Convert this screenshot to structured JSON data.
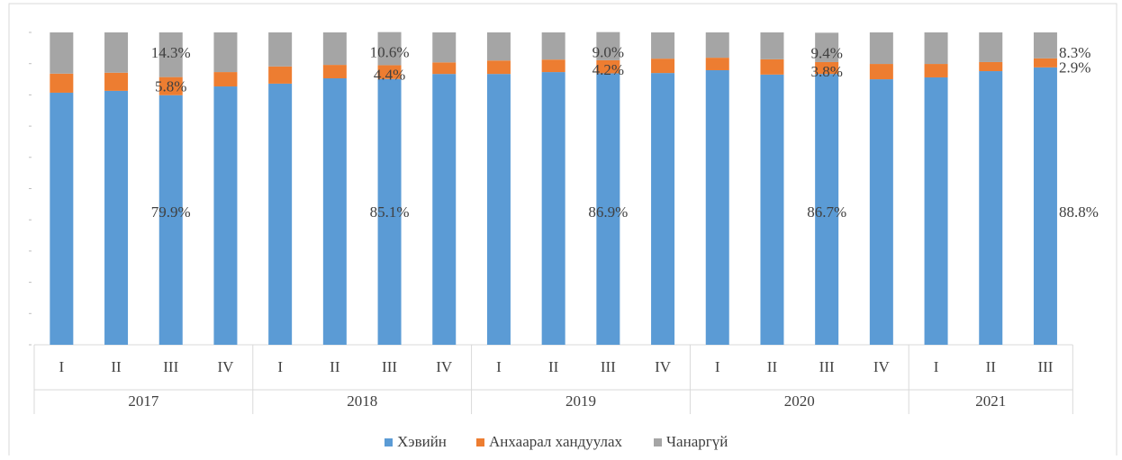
{
  "chart_data": {
    "type": "stacked_bar_100",
    "groups": [
      {
        "label": "2017",
        "categories": [
          "I",
          "II",
          "III",
          "IV"
        ]
      },
      {
        "label": "2018",
        "categories": [
          "I",
          "II",
          "III",
          "IV"
        ]
      },
      {
        "label": "2019",
        "categories": [
          "I",
          "II",
          "III",
          "IV"
        ]
      },
      {
        "label": "2020",
        "categories": [
          "I",
          "II",
          "III",
          "IV"
        ]
      },
      {
        "label": "2021",
        "categories": [
          "I",
          "II",
          "III"
        ]
      }
    ],
    "series": [
      {
        "name": "Хэвийн",
        "color": "#5b9bd5",
        "values": [
          80.7,
          81.3,
          79.9,
          82.7,
          83.6,
          85.3,
          85.1,
          86.7,
          86.7,
          87.3,
          86.9,
          87.0,
          87.9,
          86.5,
          86.7,
          85.0,
          85.6,
          87.6,
          88.8
        ],
        "value_labels": [
          null,
          null,
          "79.9%",
          null,
          null,
          null,
          "85.1%",
          null,
          null,
          null,
          "86.9%",
          null,
          null,
          null,
          "86.7%",
          null,
          null,
          null,
          "88.8%"
        ]
      },
      {
        "name": "Анхаарал хандуулах",
        "color": "#ed7d31",
        "values": [
          6.1,
          5.8,
          5.8,
          4.6,
          5.5,
          4.3,
          4.4,
          3.7,
          4.3,
          4.0,
          4.2,
          4.6,
          4.0,
          4.9,
          3.8,
          4.9,
          4.3,
          2.9,
          2.9
        ],
        "value_labels": [
          null,
          null,
          "5.8%",
          null,
          null,
          null,
          "4.4%",
          null,
          null,
          null,
          "4.2%",
          null,
          null,
          null,
          "3.8%",
          null,
          null,
          null,
          "2.9%"
        ]
      },
      {
        "name": "Чанаргүй",
        "color": "#a5a5a5",
        "values": [
          13.2,
          12.9,
          14.3,
          12.7,
          10.9,
          10.4,
          10.6,
          9.6,
          9.0,
          8.7,
          9.0,
          8.4,
          8.1,
          8.6,
          9.4,
          10.1,
          10.1,
          9.5,
          8.3
        ],
        "value_labels": [
          null,
          null,
          "14.3%",
          null,
          null,
          null,
          "10.6%",
          null,
          null,
          null,
          "9.0%",
          null,
          null,
          null,
          "9.4%",
          null,
          null,
          null,
          "8.3%"
        ]
      }
    ],
    "ylim": [
      0,
      100
    ],
    "yticks": [
      0,
      10,
      20,
      30,
      40,
      50,
      60,
      70,
      80,
      90,
      100
    ],
    "legend": "bottom"
  }
}
